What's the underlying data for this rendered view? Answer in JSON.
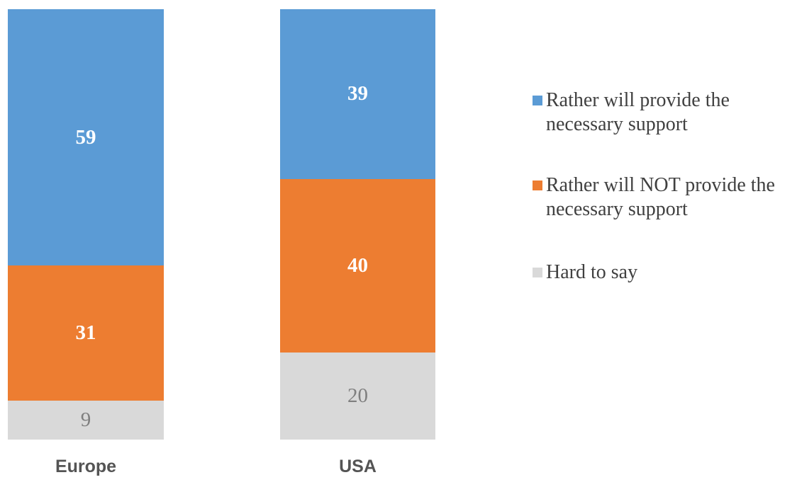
{
  "chart_data": {
    "type": "bar",
    "subtype": "stacked-column",
    "title": "",
    "xlabel": "",
    "ylabel": "",
    "categories": [
      "Europe",
      "USA"
    ],
    "series": [
      {
        "name": "Rather will provide the necessary support",
        "color": "#5B9BD5",
        "values": [
          59,
          39
        ],
        "label_color": "#FFFFFF",
        "label_bold": true
      },
      {
        "name": "Rather will NOT provide the necessary support",
        "color": "#ED7D31",
        "values": [
          31,
          40
        ],
        "label_color": "#FFFFFF",
        "label_bold": true
      },
      {
        "name": "Hard to say",
        "color": "#D9D9D9",
        "values": [
          9,
          20
        ],
        "label_color": "#7F7F7F",
        "label_bold": false
      }
    ],
    "ylim": [
      0,
      100
    ],
    "grid": false,
    "axes_visible": false,
    "legend_position": "right",
    "data_labels": "inside-center"
  },
  "style": {
    "category_label_color": "#545454",
    "legend_text_color": "#404040",
    "background": "#FFFFFF"
  }
}
